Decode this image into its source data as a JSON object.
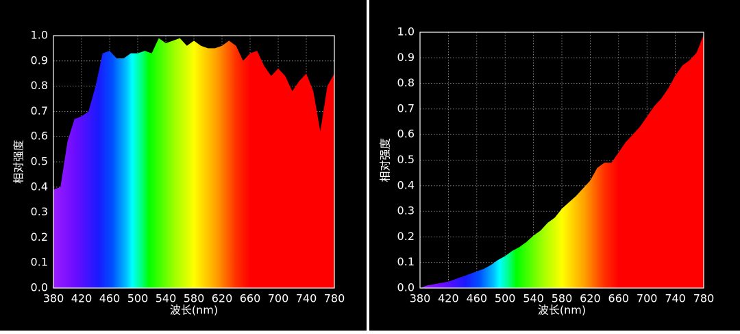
{
  "chart_data": [
    {
      "type": "area",
      "xlabel": "波长(nm)",
      "ylabel": "相对强度",
      "grid": true,
      "x": [
        380,
        390,
        400,
        410,
        420,
        430,
        440,
        450,
        460,
        470,
        480,
        490,
        500,
        510,
        520,
        530,
        540,
        550,
        560,
        570,
        580,
        590,
        600,
        610,
        620,
        630,
        640,
        650,
        660,
        670,
        680,
        690,
        700,
        710,
        720,
        730,
        740,
        750,
        760,
        770,
        780
      ],
      "values": [
        0.39,
        0.4,
        0.58,
        0.67,
        0.68,
        0.7,
        0.8,
        0.93,
        0.94,
        0.91,
        0.91,
        0.93,
        0.93,
        0.94,
        0.93,
        0.99,
        0.97,
        0.98,
        0.99,
        0.96,
        0.98,
        0.96,
        0.95,
        0.95,
        0.96,
        0.98,
        0.96,
        0.9,
        0.93,
        0.94,
        0.88,
        0.84,
        0.87,
        0.84,
        0.78,
        0.82,
        0.85,
        0.78,
        0.62,
        0.8,
        0.85
      ],
      "xlim": [
        380,
        780
      ],
      "ylim": [
        0,
        1
      ],
      "xticks": [
        380,
        420,
        460,
        500,
        540,
        580,
        620,
        660,
        700,
        740,
        780
      ],
      "yticks": [
        {
          "value": 0,
          "label": "0.0"
        },
        0.1,
        0.2,
        0.3,
        0.4,
        0.5,
        0.6,
        0.7,
        0.8,
        0.9,
        {
          "value": 1,
          "label": "1.0"
        }
      ]
    },
    {
      "type": "area",
      "xlabel": "波长(nm)",
      "ylabel": "相对强度",
      "grid": true,
      "x": [
        380,
        390,
        400,
        410,
        420,
        430,
        440,
        450,
        460,
        470,
        480,
        490,
        500,
        510,
        520,
        530,
        540,
        550,
        560,
        570,
        580,
        590,
        600,
        610,
        620,
        630,
        640,
        650,
        660,
        670,
        680,
        690,
        700,
        710,
        720,
        730,
        740,
        750,
        760,
        770,
        780
      ],
      "values": [
        0.0,
        0.01,
        0.015,
        0.02,
        0.025,
        0.035,
        0.045,
        0.055,
        0.065,
        0.075,
        0.09,
        0.11,
        0.125,
        0.145,
        0.16,
        0.18,
        0.205,
        0.225,
        0.255,
        0.275,
        0.31,
        0.335,
        0.36,
        0.39,
        0.42,
        0.47,
        0.49,
        0.49,
        0.53,
        0.57,
        0.6,
        0.63,
        0.67,
        0.71,
        0.74,
        0.78,
        0.83,
        0.87,
        0.89,
        0.92,
        0.99
      ],
      "xlim": [
        380,
        780
      ],
      "ylim": [
        0,
        1
      ],
      "xticks": [
        380,
        420,
        460,
        500,
        540,
        580,
        620,
        660,
        700,
        740,
        780
      ],
      "yticks": [
        {
          "value": 0,
          "label": "0.0"
        },
        0.1,
        0.2,
        0.3,
        0.4,
        0.5,
        0.6,
        0.7,
        0.8,
        0.9,
        {
          "value": 1,
          "label": "1.0"
        }
      ]
    }
  ]
}
